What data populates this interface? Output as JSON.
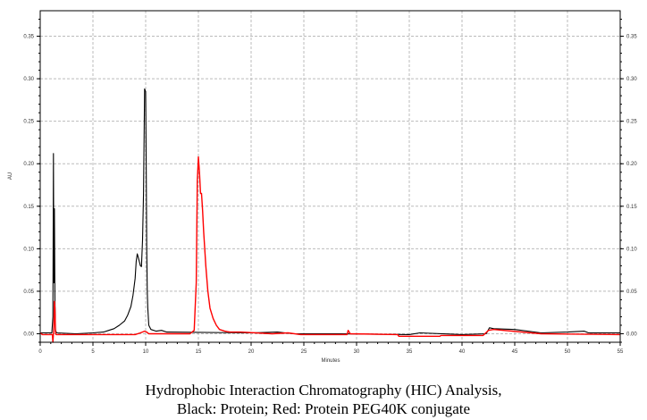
{
  "chart_data": {
    "type": "line",
    "title": "",
    "xlabel": "Minutes",
    "ylabel": "AU",
    "xlim": [
      0,
      55
    ],
    "ylim": [
      -0.01,
      0.38
    ],
    "xticks": [
      0,
      5,
      10,
      15,
      20,
      25,
      30,
      35,
      40,
      45,
      50,
      55
    ],
    "yticks": [
      "0.00",
      "0.05",
      "0.10",
      "0.15",
      "0.20",
      "0.25",
      "0.30",
      "0.35"
    ],
    "grid": true,
    "series": [
      {
        "name": "Protein",
        "color": "#000000",
        "x": [
          0,
          1.1,
          1.2,
          1.25,
          1.3,
          1.35,
          1.4,
          1.45,
          1.5,
          1.6,
          3.4,
          5,
          6,
          6.5,
          7,
          7.5,
          8,
          8.3,
          8.6,
          8.8,
          9.0,
          9.1,
          9.2,
          9.3,
          9.4,
          9.5,
          9.6,
          9.7,
          9.8,
          9.9,
          10.0,
          10.05,
          10.1,
          10.15,
          10.2,
          10.3,
          10.5,
          11,
          11.5,
          12,
          20,
          22.5,
          24,
          28,
          35,
          36,
          40,
          42.3,
          42.6,
          43,
          45,
          47.5,
          50,
          51.6,
          52,
          55
        ],
        "y": [
          0.001,
          0.001,
          0.02,
          0.212,
          0.06,
          0.147,
          0.038,
          0.005,
          0.002,
          0.001,
          0.0,
          0.001,
          0.002,
          0.004,
          0.006,
          0.01,
          0.015,
          0.022,
          0.032,
          0.045,
          0.065,
          0.085,
          0.094,
          0.09,
          0.085,
          0.08,
          0.079,
          0.11,
          0.165,
          0.288,
          0.285,
          0.2,
          0.1,
          0.05,
          0.03,
          0.01,
          0.005,
          0.003,
          0.004,
          0.002,
          0.001,
          0.002,
          0.0,
          0.0,
          -0.001,
          0.001,
          -0.001,
          0.0,
          0.007,
          0.006,
          0.005,
          0.001,
          0.002,
          0.003,
          0.001,
          0.001
        ]
      },
      {
        "name": "Protein PEG40K conjugate",
        "color": "#ff0000",
        "x": [
          0,
          0.2,
          1.15,
          1.2,
          1.3,
          1.35,
          1.4,
          1.45,
          1.5,
          1.6,
          9.0,
          9.5,
          9.9,
          10.1,
          10.3,
          14.2,
          14.6,
          14.8,
          14.9,
          15.0,
          15.1,
          15.2,
          15.3,
          15.4,
          15.5,
          15.7,
          15.9,
          16.1,
          16.4,
          16.7,
          17,
          17.5,
          18,
          19,
          22,
          23.5,
          24.7,
          29.1,
          29.2,
          29.4,
          33.9,
          34,
          37.9,
          38,
          42.0,
          42.5,
          43,
          47.5,
          55
        ],
        "y": [
          0.001,
          -0.001,
          -0.001,
          -0.01,
          0.008,
          0.038,
          0.03,
          0.002,
          -0.001,
          -0.001,
          -0.001,
          0.001,
          0.003,
          0.002,
          0.0,
          0.0,
          0.004,
          0.06,
          0.18,
          0.208,
          0.19,
          0.165,
          0.165,
          0.145,
          0.12,
          0.08,
          0.05,
          0.03,
          0.018,
          0.01,
          0.005,
          0.003,
          0.002,
          0.002,
          0.0,
          0.001,
          -0.001,
          -0.001,
          0.004,
          0.0,
          -0.001,
          -0.003,
          -0.003,
          -0.002,
          -0.002,
          0.004,
          0.005,
          0.0,
          -0.001
        ]
      }
    ]
  },
  "caption": {
    "line1": "Hydrophobic Interaction Chromatography (HIC) Analysis,",
    "line2": "Black: Protein; Red: Protein PEG40K conjugate"
  }
}
